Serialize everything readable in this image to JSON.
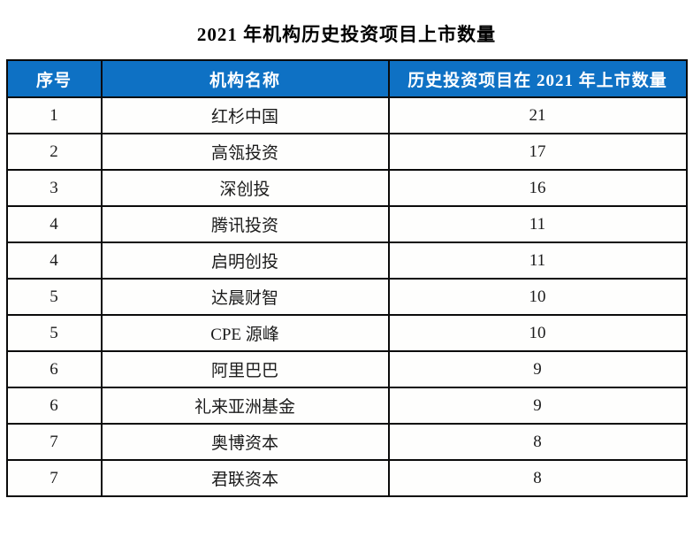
{
  "colors": {
    "header_bg": "#0e71c4",
    "header_text": "#ffffff",
    "border": "#0b0b0b",
    "cell_text": "#1b1b1b",
    "page_bg": "#ffffff"
  },
  "chart_data": {
    "type": "table",
    "title": "2021 年机构历史投资项目上市数量",
    "columns": [
      "序号",
      "机构名称",
      "历史投资项目在 2021 年上市数量"
    ],
    "rows": [
      [
        "1",
        "红杉中国",
        "21"
      ],
      [
        "2",
        "高瓴投资",
        "17"
      ],
      [
        "3",
        "深创投",
        "16"
      ],
      [
        "4",
        "腾讯投资",
        "11"
      ],
      [
        "4",
        "启明创投",
        "11"
      ],
      [
        "5",
        "达晨财智",
        "10"
      ],
      [
        "5",
        "CPE 源峰",
        "10"
      ],
      [
        "6",
        "阿里巴巴",
        "9"
      ],
      [
        "6",
        "礼来亚洲基金",
        "9"
      ],
      [
        "7",
        "奥博资本",
        "8"
      ],
      [
        "7",
        "君联资本",
        "8"
      ]
    ],
    "layout": {
      "grid": "full-borders",
      "header_position": "top",
      "column_alignment": [
        "center",
        "center",
        "center"
      ]
    }
  }
}
